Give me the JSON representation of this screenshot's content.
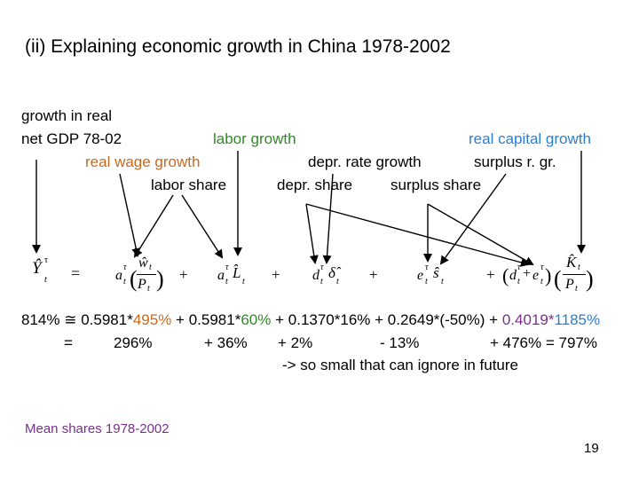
{
  "slide": {
    "title": "(ii) Explaining economic growth in China 1978-2002",
    "labels": {
      "gdp_line1": "growth in real",
      "gdp_line2": "net GDP 78-02",
      "labor_growth": "labor growth",
      "real_capital_growth": "real capital growth",
      "real_wage_growth": "real wage growth",
      "depr_rate_growth": "depr. rate growth",
      "surplus_r_gr": "surplus r. gr.",
      "labor_share": "labor share",
      "depr_share": "depr. share",
      "surplus_share": "surplus share"
    },
    "numbers_line1": {
      "total": "814%",
      "approx": "≅",
      "t1_coef": "0.5981*",
      "t1_val": "495%",
      "t2_plus": "+",
      "t2_coef": "0.5981*",
      "t2_val": "60%",
      "t3": "+ 0.1370*16%",
      "t4": "+ 0.2649*(-50%)",
      "t5_plus": "+",
      "t5_coef": "0.4019*",
      "t5_val": "1185%"
    },
    "numbers_line2": {
      "eq": "=",
      "v1": "296%",
      "v2": "+  36%",
      "v3": "+  2%",
      "v4": "-  13%",
      "v5": "+  476%  =  797%"
    },
    "note": "-> so small that can ignore in future",
    "footer": "Mean shares 1978-2002",
    "page_number": "19"
  }
}
